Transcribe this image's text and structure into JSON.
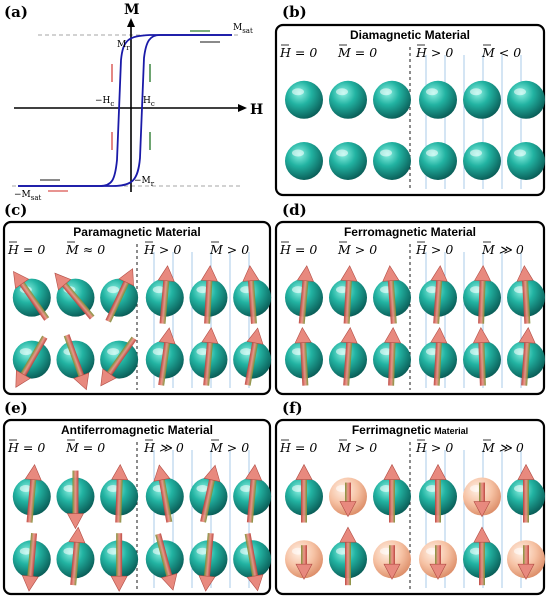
{
  "panel_a": {
    "label": "(a)",
    "y_axis": "M",
    "x_axis": "H",
    "m_sat": "M",
    "m_sat_sub": "sat",
    "m_r": "M",
    "m_r_sub": "r",
    "h_c_pos": "H",
    "h_c_pos_sub": "c",
    "h_c_neg": "−H",
    "h_c_neg_sub": "c",
    "m_r_neg": "−M",
    "m_r_neg_sub": "r",
    "m_sat_neg": "−M",
    "m_sat_neg_sub": "sat",
    "colors": {
      "loop": "#1a1aa8",
      "arrow_up": "#d9534f",
      "arrow_down": "#2e7d32"
    }
  },
  "panels": [
    {
      "label": "(b)",
      "title": "Diamagnetic Material",
      "conds": [
        "H = 0",
        "M = 0",
        "H > 0",
        "M < 0"
      ]
    },
    {
      "label": "(c)",
      "title": "Paramagnetic Material",
      "conds": [
        "H = 0",
        "M ≈ 0",
        "H > 0",
        "M > 0"
      ]
    },
    {
      "label": "(d)",
      "title": "Ferromagnetic Material",
      "conds": [
        "H = 0",
        "M > 0",
        "H > 0",
        "M ≫ 0"
      ]
    },
    {
      "label": "(e)",
      "title": "Antiferromagnetic Material",
      "conds": [
        "H = 0",
        "M = 0",
        "H ≫ 0",
        "M > 0"
      ]
    },
    {
      "label": "(f)",
      "title": "Ferrimagnetic",
      "title_small": "Material",
      "conds": [
        "H = 0",
        "M > 0",
        "H > 0",
        "M ≫ 0"
      ]
    }
  ],
  "colors": {
    "sphere_main": "#1fa89a",
    "sphere_alt": "#f2b89a",
    "arrow": "#d9746a",
    "arrow_shaft": "#6a8f3a",
    "field_line": "#9fc6e8"
  }
}
